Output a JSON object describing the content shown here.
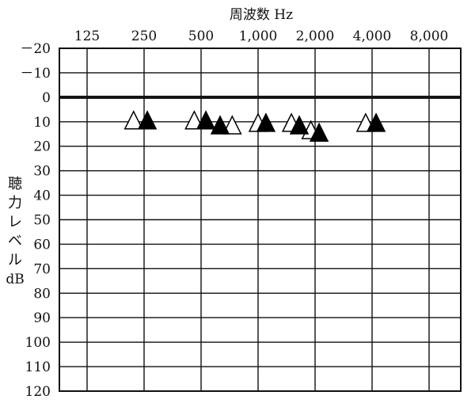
{
  "chart_data": {
    "type": "scatter",
    "title": "",
    "xlabel": "周波数 Hz",
    "ylabel": "聴力レベル dB",
    "ylabel_lines": [
      "聴",
      "力",
      "レ",
      "ベ",
      "ル",
      "dB"
    ],
    "x_scale": "log2",
    "x_ticks": [
      125,
      250,
      500,
      1000,
      2000,
      4000,
      8000
    ],
    "x_tick_labels": [
      "125",
      "250",
      "500",
      "1,000",
      "2,000",
      "4,000",
      "8,000"
    ],
    "ylim": [
      -20,
      120
    ],
    "y_inverted": true,
    "y_ticks": [
      -20,
      -10,
      0,
      10,
      20,
      30,
      40,
      50,
      60,
      70,
      80,
      90,
      100,
      110,
      120
    ],
    "y_tick_labels": [
      "－20",
      "－10",
      "0",
      "10",
      "20",
      "30",
      "40",
      "50",
      "60",
      "70",
      "80",
      "90",
      "100",
      "110",
      "120"
    ],
    "reference_line_y": 0,
    "grid": true,
    "series": [
      {
        "marker": "open-triangle",
        "color": "#ffffff",
        "points": [
          {
            "x": 220,
            "y": 10
          },
          {
            "x": 460,
            "y": 10
          },
          {
            "x": 730,
            "y": 12
          },
          {
            "x": 1000,
            "y": 11
          },
          {
            "x": 1500,
            "y": 11
          },
          {
            "x": 1900,
            "y": 14
          },
          {
            "x": 3700,
            "y": 11
          }
        ]
      },
      {
        "marker": "filled-triangle",
        "color": "#000000",
        "points": [
          {
            "x": 260,
            "y": 10
          },
          {
            "x": 530,
            "y": 10
          },
          {
            "x": 630,
            "y": 12
          },
          {
            "x": 1100,
            "y": 11
          },
          {
            "x": 1650,
            "y": 12
          },
          {
            "x": 2100,
            "y": 15
          },
          {
            "x": 4200,
            "y": 11
          }
        ]
      }
    ]
  }
}
